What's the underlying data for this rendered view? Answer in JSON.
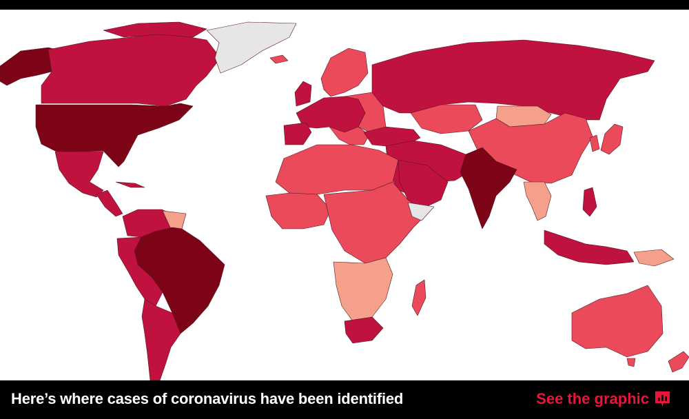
{
  "map": {
    "colors": {
      "none": "#e6e6e6",
      "low": "#f5a08a",
      "moderate": "#ea4a5a",
      "high": "#c0123e",
      "very_high": "#7d0417",
      "ocean": "#ffffff"
    }
  },
  "footer": {
    "headline": "Here’s where cases of coronavirus have been identified",
    "cta_label": "See the graphic",
    "cta_icon": "chart-icon",
    "cta_color": "#e8153c"
  }
}
